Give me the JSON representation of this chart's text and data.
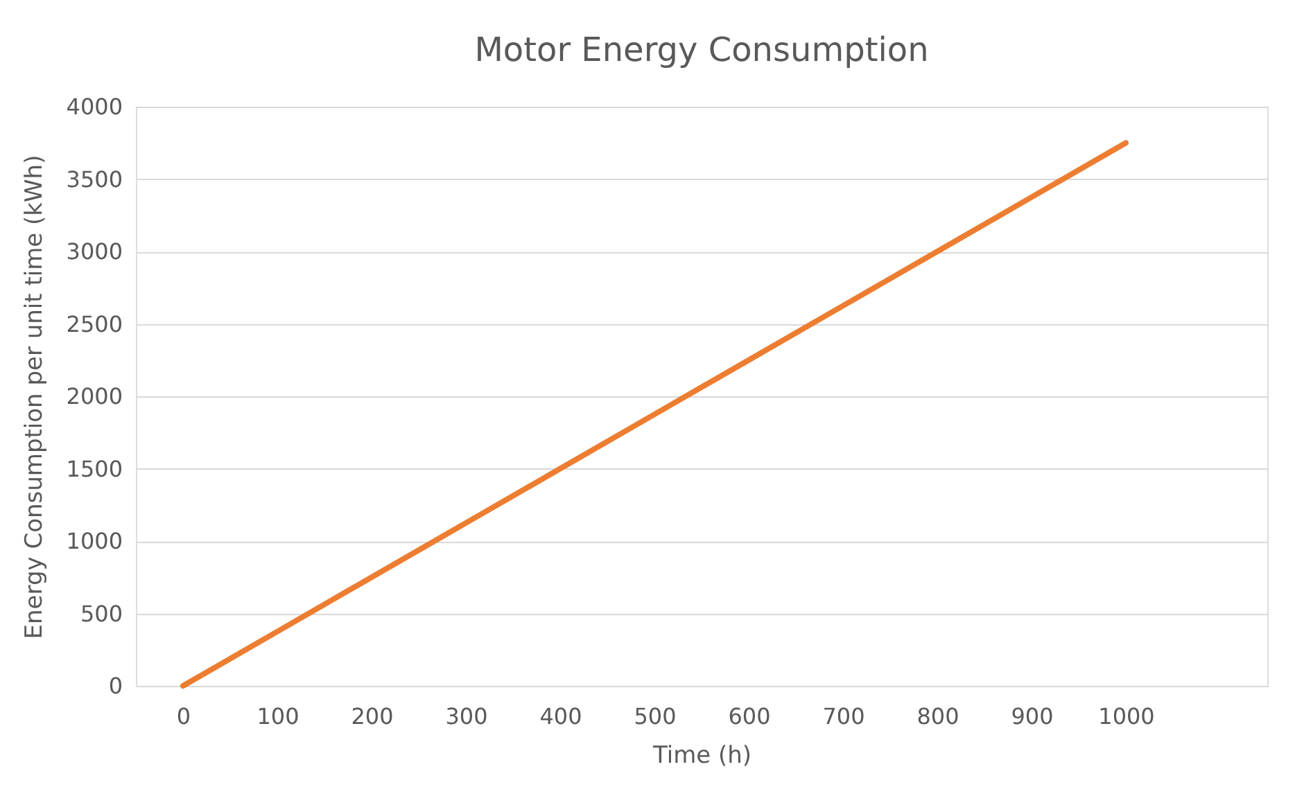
{
  "chart_data": {
    "type": "line",
    "title": "Motor Energy Consumption",
    "xlabel": "Time (h)",
    "ylabel": "Energy Consumption per unit time (kWh)",
    "x": [
      0,
      100,
      200,
      300,
      400,
      500,
      600,
      700,
      800,
      900,
      1000
    ],
    "series": [
      {
        "color": "#ed7d31",
        "values": [
          0,
          375,
          750,
          1125,
          1500,
          1875,
          2250,
          2625,
          3000,
          3375,
          3750
        ]
      }
    ],
    "xlim": [
      -50,
      1150
    ],
    "xticks": [
      0,
      100,
      200,
      300,
      400,
      500,
      600,
      700,
      800,
      900,
      1000
    ],
    "ylim": [
      0,
      4000
    ],
    "yticks": [
      0,
      500,
      1000,
      1500,
      2000,
      2500,
      3000,
      3500,
      4000
    ],
    "grid": "y",
    "legend": false,
    "marker": "none",
    "line_style": "solid"
  }
}
